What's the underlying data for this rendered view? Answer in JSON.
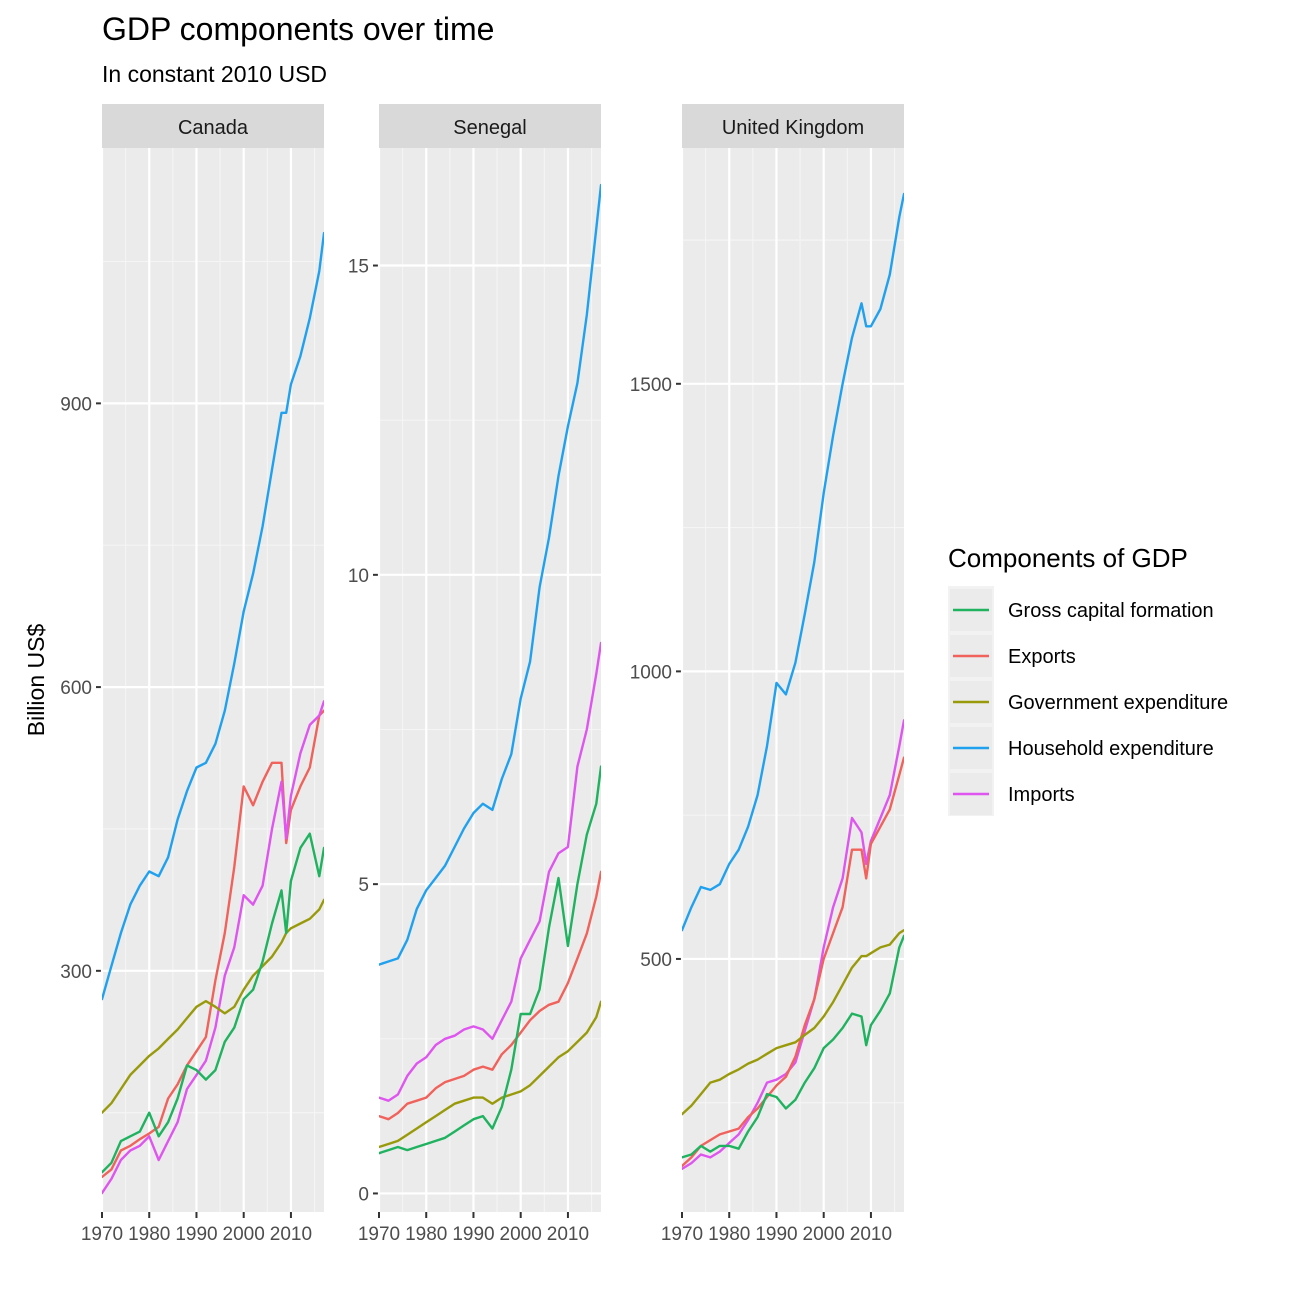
{
  "chart_data": {
    "type": "line",
    "title": "GDP components over time",
    "subtitle": "In constant 2010 USD",
    "ylabel": "Billion US$",
    "xlabel": "",
    "x_ticks": [
      1970,
      1980,
      1990,
      2000,
      2010
    ],
    "xlim": [
      1970,
      2017
    ],
    "grid": true,
    "legend": {
      "title": "Components of GDP",
      "position": "right",
      "entries": [
        {
          "name": "Gross capital formation",
          "color": "#1fb25f"
        },
        {
          "name": "Exports",
          "color": "#f0625b"
        },
        {
          "name": "Government expenditure",
          "color": "#999a0a"
        },
        {
          "name": "Household expenditure",
          "color": "#20a1ef"
        },
        {
          "name": "Imports",
          "color": "#df55ef"
        }
      ]
    },
    "panels": [
      {
        "name": "Canada",
        "ylim": [
          45,
          1170
        ],
        "y_ticks": [
          300,
          600,
          900
        ],
        "series": [
          {
            "name": "Household expenditure",
            "x": [
              1970,
              1972,
              1974,
              1976,
              1978,
              1980,
              1982,
              1984,
              1986,
              1988,
              1990,
              1992,
              1994,
              1996,
              1998,
              2000,
              2002,
              2004,
              2006,
              2008,
              2009,
              2010,
              2012,
              2014,
              2016,
              2017
            ],
            "values": [
              270,
              305,
              340,
              370,
              390,
              405,
              400,
              420,
              460,
              490,
              515,
              520,
              540,
              575,
              625,
              680,
              720,
              770,
              830,
              890,
              890,
              920,
              950,
              990,
              1040,
              1080
            ]
          },
          {
            "name": "Exports",
            "x": [
              1970,
              1972,
              1974,
              1976,
              1978,
              1980,
              1982,
              1984,
              1986,
              1988,
              1990,
              1992,
              1994,
              1996,
              1998,
              2000,
              2002,
              2004,
              2006,
              2008,
              2009,
              2010,
              2012,
              2014,
              2016,
              2017
            ],
            "values": [
              82,
              90,
              110,
              115,
              122,
              128,
              135,
              165,
              180,
              200,
              215,
              230,
              290,
              340,
              410,
              495,
              475,
              500,
              520,
              520,
              435,
              470,
              495,
              515,
              570,
              575
            ]
          },
          {
            "name": "Imports",
            "x": [
              1970,
              1972,
              1974,
              1976,
              1978,
              1980,
              1982,
              1984,
              1986,
              1988,
              1990,
              1992,
              1994,
              1996,
              1998,
              2000,
              2002,
              2004,
              2006,
              2008,
              2009,
              2010,
              2012,
              2014,
              2016,
              2017
            ],
            "values": [
              65,
              80,
              100,
              110,
              115,
              125,
              100,
              120,
              140,
              175,
              190,
              205,
              240,
              295,
              325,
              380,
              370,
              390,
              450,
              500,
              440,
              485,
              530,
              560,
              570,
              585
            ]
          },
          {
            "name": "Government expenditure",
            "x": [
              1970,
              1972,
              1974,
              1976,
              1978,
              1980,
              1982,
              1984,
              1986,
              1988,
              1990,
              1992,
              1994,
              1996,
              1998,
              2000,
              2002,
              2004,
              2006,
              2008,
              2009,
              2010,
              2012,
              2014,
              2016,
              2017
            ],
            "values": [
              150,
              160,
              175,
              190,
              200,
              210,
              218,
              228,
              238,
              250,
              262,
              268,
              262,
              255,
              262,
              280,
              295,
              305,
              315,
              330,
              340,
              345,
              350,
              355,
              365,
              375
            ]
          },
          {
            "name": "Gross capital formation",
            "x": [
              1970,
              1972,
              1974,
              1976,
              1978,
              1980,
              1982,
              1984,
              1986,
              1988,
              1990,
              1992,
              1994,
              1996,
              1998,
              2000,
              2002,
              2004,
              2006,
              2008,
              2009,
              2010,
              2012,
              2014,
              2016,
              2017
            ],
            "values": [
              87,
              97,
              120,
              125,
              130,
              150,
              125,
              140,
              165,
              200,
              195,
              185,
              195,
              225,
              240,
              270,
              280,
              310,
              350,
              385,
              340,
              395,
              430,
              445,
              400,
              430
            ]
          }
        ]
      },
      {
        "name": "Senegal",
        "ylim": [
          -0.3,
          16.9
        ],
        "y_ticks": [
          0,
          5,
          10,
          15
        ],
        "series": [
          {
            "name": "Household expenditure",
            "x": [
              1970,
              1972,
              1974,
              1976,
              1978,
              1980,
              1982,
              1984,
              1986,
              1988,
              1990,
              1992,
              1994,
              1996,
              1998,
              2000,
              2002,
              2004,
              2006,
              2008,
              2010,
              2012,
              2014,
              2016,
              2017
            ],
            "values": [
              3.7,
              3.75,
              3.8,
              4.1,
              4.6,
              4.9,
              5.1,
              5.3,
              5.6,
              5.9,
              6.15,
              6.3,
              6.2,
              6.7,
              7.1,
              8.0,
              8.6,
              9.8,
              10.6,
              11.6,
              12.4,
              13.1,
              14.2,
              15.6,
              16.3
            ]
          },
          {
            "name": "Imports",
            "x": [
              1970,
              1972,
              1974,
              1976,
              1978,
              1980,
              1982,
              1984,
              1986,
              1988,
              1990,
              1992,
              1994,
              1996,
              1998,
              2000,
              2002,
              2004,
              2006,
              2008,
              2010,
              2012,
              2014,
              2016,
              2017
            ],
            "values": [
              1.55,
              1.5,
              1.6,
              1.9,
              2.1,
              2.2,
              2.4,
              2.5,
              2.55,
              2.65,
              2.7,
              2.65,
              2.5,
              2.8,
              3.1,
              3.8,
              4.1,
              4.4,
              5.2,
              5.5,
              5.6,
              6.9,
              7.5,
              8.4,
              8.9
            ]
          },
          {
            "name": "Exports",
            "x": [
              1970,
              1972,
              1974,
              1976,
              1978,
              1980,
              1982,
              1984,
              1986,
              1988,
              1990,
              1992,
              1994,
              1996,
              1998,
              2000,
              2002,
              2004,
              2006,
              2008,
              2010,
              2012,
              2014,
              2016,
              2017
            ],
            "values": [
              1.25,
              1.2,
              1.3,
              1.45,
              1.5,
              1.55,
              1.7,
              1.8,
              1.85,
              1.9,
              2.0,
              2.05,
              2.0,
              2.25,
              2.4,
              2.6,
              2.8,
              2.95,
              3.05,
              3.1,
              3.4,
              3.8,
              4.2,
              4.8,
              5.2
            ]
          },
          {
            "name": "Government expenditure",
            "x": [
              1970,
              1972,
              1974,
              1976,
              1978,
              1980,
              1982,
              1984,
              1986,
              1988,
              1990,
              1992,
              1994,
              1996,
              1998,
              2000,
              2002,
              2004,
              2006,
              2008,
              2010,
              2012,
              2014,
              2016,
              2017
            ],
            "values": [
              0.75,
              0.8,
              0.85,
              0.95,
              1.05,
              1.15,
              1.25,
              1.35,
              1.45,
              1.5,
              1.55,
              1.55,
              1.45,
              1.55,
              1.6,
              1.65,
              1.75,
              1.9,
              2.05,
              2.2,
              2.3,
              2.45,
              2.6,
              2.85,
              3.1
            ]
          },
          {
            "name": "Gross capital formation",
            "x": [
              1970,
              1972,
              1974,
              1976,
              1978,
              1980,
              1982,
              1984,
              1986,
              1988,
              1990,
              1992,
              1994,
              1996,
              1998,
              2000,
              2002,
              2004,
              2006,
              2008,
              2010,
              2012,
              2014,
              2016,
              2017
            ],
            "values": [
              0.65,
              0.7,
              0.75,
              0.7,
              0.75,
              0.8,
              0.85,
              0.9,
              1.0,
              1.1,
              1.2,
              1.25,
              1.05,
              1.4,
              2.0,
              2.9,
              2.9,
              3.3,
              4.3,
              5.1,
              4.0,
              5.0,
              5.8,
              6.3,
              6.9
            ]
          }
        ]
      },
      {
        "name": "United Kingdom",
        "ylim": [
          60,
          1910
        ],
        "y_ticks": [
          500,
          1000,
          1500
        ],
        "series": [
          {
            "name": "Household expenditure",
            "x": [
              1970,
              1972,
              1974,
              1976,
              1978,
              1980,
              1982,
              1984,
              1986,
              1988,
              1990,
              1992,
              1994,
              1996,
              1998,
              2000,
              2002,
              2004,
              2006,
              2008,
              2009,
              2010,
              2012,
              2014,
              2016,
              2017
            ],
            "values": [
              550,
              590,
              625,
              620,
              630,
              665,
              690,
              730,
              785,
              870,
              980,
              960,
              1015,
              1100,
              1190,
              1310,
              1410,
              1500,
              1580,
              1640,
              1600,
              1600,
              1630,
              1690,
              1790,
              1830
            ]
          },
          {
            "name": "Imports",
            "x": [
              1970,
              1972,
              1974,
              1976,
              1978,
              1980,
              1982,
              1984,
              1986,
              1988,
              1990,
              1992,
              1994,
              1996,
              1998,
              2000,
              2002,
              2004,
              2006,
              2008,
              2009,
              2010,
              2012,
              2014,
              2016,
              2017
            ],
            "values": [
              135,
              145,
              160,
              155,
              165,
              180,
              195,
              220,
              250,
              285,
              290,
              300,
              320,
              375,
              430,
              520,
              590,
              640,
              745,
              720,
              665,
              705,
              745,
              785,
              870,
              915
            ]
          },
          {
            "name": "Exports",
            "x": [
              1970,
              1972,
              1974,
              1976,
              1978,
              1980,
              1982,
              1984,
              1986,
              1988,
              1990,
              1992,
              1994,
              1996,
              1998,
              2000,
              2002,
              2004,
              2006,
              2008,
              2009,
              2010,
              2012,
              2014,
              2016,
              2017
            ],
            "values": [
              140,
              155,
              175,
              185,
              195,
              200,
              205,
              225,
              240,
              260,
              280,
              295,
              330,
              385,
              430,
              500,
              545,
              590,
              690,
              690,
              640,
              700,
              730,
              760,
              820,
              850
            ]
          },
          {
            "name": "Government expenditure",
            "x": [
              1970,
              1972,
              1974,
              1976,
              1978,
              1980,
              1982,
              1984,
              1986,
              1988,
              1990,
              1992,
              1994,
              1996,
              1998,
              2000,
              2002,
              2004,
              2006,
              2008,
              2009,
              2010,
              2012,
              2014,
              2016,
              2017
            ],
            "values": [
              230,
              245,
              265,
              285,
              290,
              300,
              308,
              318,
              325,
              335,
              345,
              350,
              355,
              368,
              380,
              400,
              425,
              455,
              485,
              505,
              505,
              510,
              520,
              525,
              545,
              550
            ]
          },
          {
            "name": "Gross capital formation",
            "x": [
              1970,
              1972,
              1974,
              1976,
              1978,
              1980,
              1982,
              1984,
              1986,
              1988,
              1990,
              1992,
              1994,
              1996,
              1998,
              2000,
              2002,
              2004,
              2006,
              2008,
              2009,
              2010,
              2012,
              2014,
              2016,
              2017
            ],
            "values": [
              155,
              160,
              175,
              165,
              175,
              175,
              170,
              200,
              225,
              265,
              260,
              240,
              255,
              285,
              310,
              345,
              360,
              380,
              405,
              400,
              350,
              385,
              410,
              440,
              520,
              540
            ]
          }
        ]
      }
    ]
  }
}
